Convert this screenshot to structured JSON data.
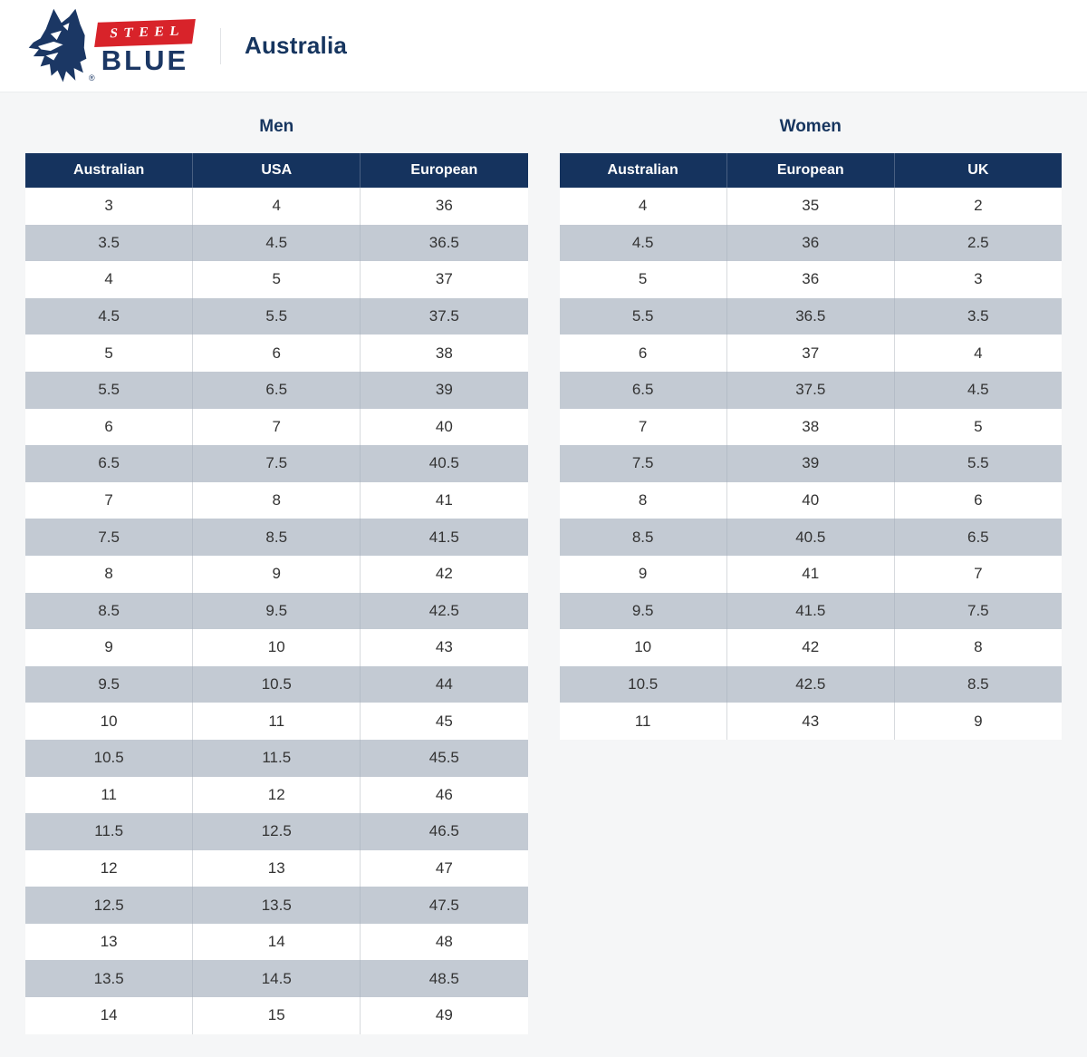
{
  "page": {
    "background": "#f5f6f7"
  },
  "header": {
    "brand": {
      "steel": "STEEL",
      "blue": "BLUE",
      "registered": "®",
      "wolf_icon": "wolf-head-icon"
    },
    "region": "Australia"
  },
  "colors": {
    "header_navy": "#15335e",
    "brand_navy": "#16355f",
    "brand_red": "#d8232a",
    "alt_row": "#c3cad3",
    "page_bg": "#f5f6f7",
    "cell_text": "#333333"
  },
  "tables": [
    {
      "id": "men",
      "title": "Men",
      "columns": [
        "Australian",
        "USA",
        "European"
      ],
      "rows": [
        [
          "3",
          "4",
          "36"
        ],
        [
          "3.5",
          "4.5",
          "36.5"
        ],
        [
          "4",
          "5",
          "37"
        ],
        [
          "4.5",
          "5.5",
          "37.5"
        ],
        [
          "5",
          "6",
          "38"
        ],
        [
          "5.5",
          "6.5",
          "39"
        ],
        [
          "6",
          "7",
          "40"
        ],
        [
          "6.5",
          "7.5",
          "40.5"
        ],
        [
          "7",
          "8",
          "41"
        ],
        [
          "7.5",
          "8.5",
          "41.5"
        ],
        [
          "8",
          "9",
          "42"
        ],
        [
          "8.5",
          "9.5",
          "42.5"
        ],
        [
          "9",
          "10",
          "43"
        ],
        [
          "9.5",
          "10.5",
          "44"
        ],
        [
          "10",
          "11",
          "45"
        ],
        [
          "10.5",
          "11.5",
          "45.5"
        ],
        [
          "11",
          "12",
          "46"
        ],
        [
          "11.5",
          "12.5",
          "46.5"
        ],
        [
          "12",
          "13",
          "47"
        ],
        [
          "12.5",
          "13.5",
          "47.5"
        ],
        [
          "13",
          "14",
          "48"
        ],
        [
          "13.5",
          "14.5",
          "48.5"
        ],
        [
          "14",
          "15",
          "49"
        ]
      ]
    },
    {
      "id": "women",
      "title": "Women",
      "columns": [
        "Australian",
        "European",
        "UK"
      ],
      "rows": [
        [
          "4",
          "35",
          "2"
        ],
        [
          "4.5",
          "36",
          "2.5"
        ],
        [
          "5",
          "36",
          "3"
        ],
        [
          "5.5",
          "36.5",
          "3.5"
        ],
        [
          "6",
          "37",
          "4"
        ],
        [
          "6.5",
          "37.5",
          "4.5"
        ],
        [
          "7",
          "38",
          "5"
        ],
        [
          "7.5",
          "39",
          "5.5"
        ],
        [
          "8",
          "40",
          "6"
        ],
        [
          "8.5",
          "40.5",
          "6.5"
        ],
        [
          "9",
          "41",
          "7"
        ],
        [
          "9.5",
          "41.5",
          "7.5"
        ],
        [
          "10",
          "42",
          "8"
        ],
        [
          "10.5",
          "42.5",
          "8.5"
        ],
        [
          "11",
          "43",
          "9"
        ]
      ]
    }
  ]
}
